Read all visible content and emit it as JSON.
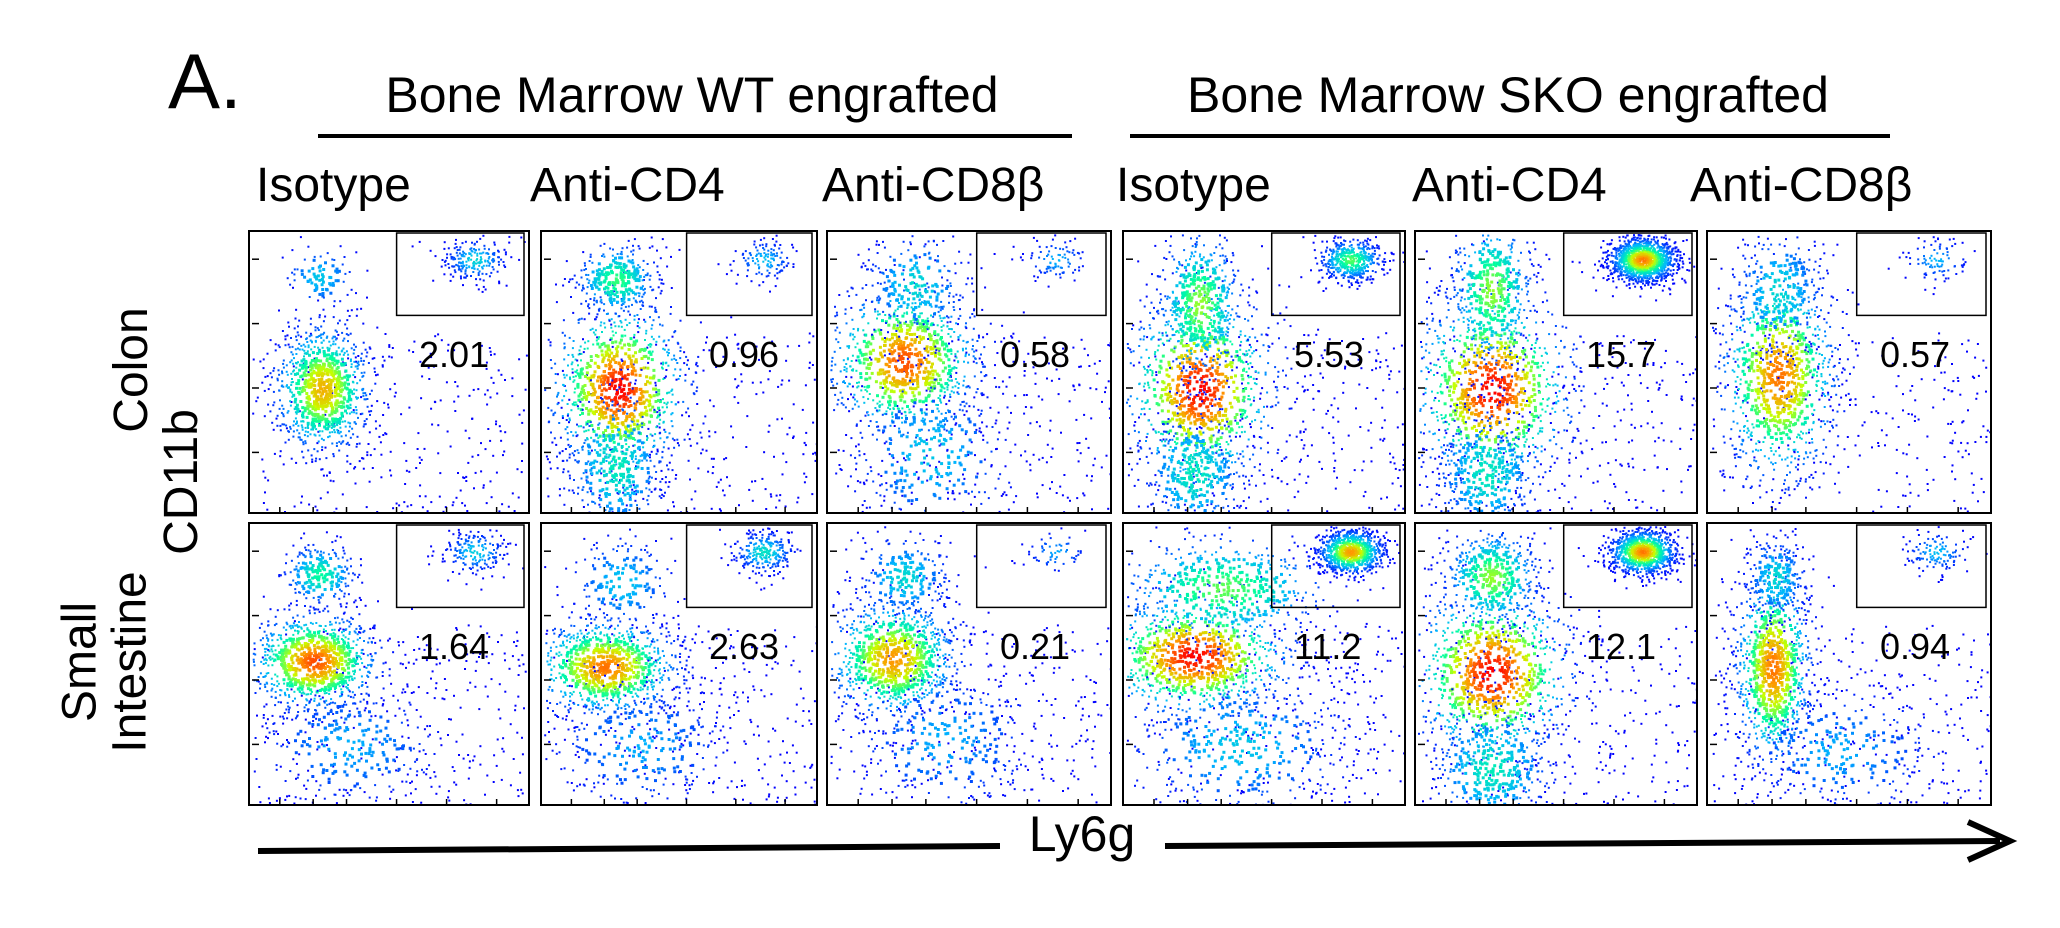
{
  "figure": {
    "panel_letter": "A.",
    "group_titles": [
      "Bone Marrow WT engrafted",
      "Bone Marrow SKO engrafted"
    ],
    "column_labels": [
      "Isotype",
      "Anti-CD4",
      "Anti-CD8β",
      "Isotype",
      "Anti-CD4",
      "Anti-CD8β"
    ],
    "row_labels": [
      {
        "lines": [
          "Colon"
        ]
      },
      {
        "lines": [
          "Small",
          "Intestine"
        ]
      }
    ],
    "y_axis_label": "CD11b",
    "x_axis_label": "Ly6g"
  },
  "chart_data": {
    "type": "scatter",
    "subtype": "flow-cytometry-density-plot-grid",
    "xlabel": "Ly6g",
    "ylabel": "CD11b",
    "rows": [
      "Colon",
      "Small Intestine"
    ],
    "columns": [
      "Isotype",
      "Anti-CD4",
      "Anti-CD8β",
      "Isotype",
      "Anti-CD4",
      "Anti-CD8β"
    ],
    "column_groups": [
      {
        "name": "Bone Marrow WT engrafted",
        "columns": [
          0,
          1,
          2
        ]
      },
      {
        "name": "Bone Marrow SKO engrafted",
        "columns": [
          3,
          4,
          5
        ]
      }
    ],
    "gate": "upper-right (Ly6g+ CD11b+)",
    "gate_percent": [
      [
        "2.01",
        "0.96",
        "0.58",
        "5.53",
        "15.7",
        "0.57"
      ],
      [
        "1.64",
        "2.63",
        "0.21",
        "11.2",
        "12.1",
        "0.94"
      ]
    ],
    "colormap": [
      "#0000ff",
      "#00b4ff",
      "#00ffa0",
      "#c8ff00",
      "#ff9600",
      "#ff0000"
    ]
  }
}
